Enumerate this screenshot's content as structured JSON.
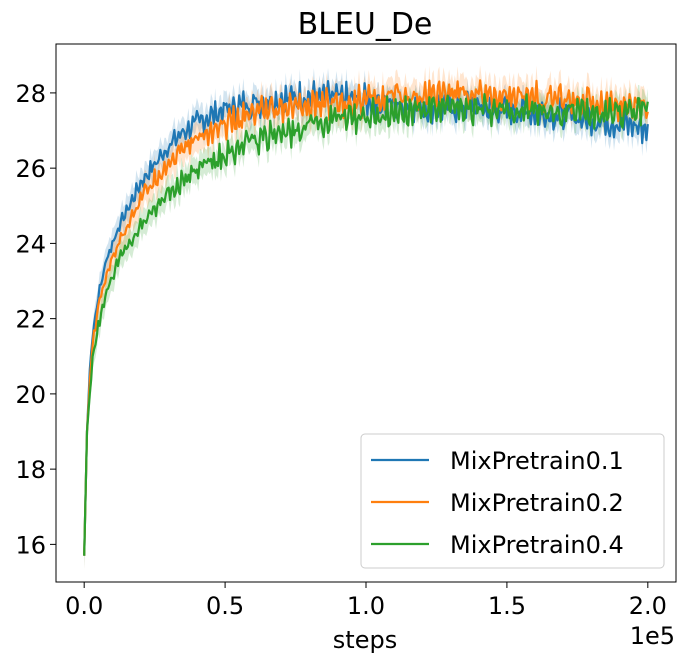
{
  "chart_data": {
    "type": "line",
    "title": "BLEU_De",
    "xlabel": "steps",
    "ylabel": "",
    "x_offset_text": "1e5",
    "xlim": [
      -0.1,
      2.1
    ],
    "ylim": [
      15.0,
      29.3
    ],
    "xticks": [
      0.0,
      0.5,
      1.0,
      1.5,
      2.0
    ],
    "xtick_labels": [
      "0.0",
      "0.5",
      "1.0",
      "1.5",
      "2.0"
    ],
    "yticks": [
      16,
      18,
      20,
      22,
      24,
      26,
      28
    ],
    "ytick_labels": [
      "16",
      "18",
      "20",
      "22",
      "24",
      "26",
      "28"
    ],
    "grid": false,
    "legend_position": "lower-right",
    "series": [
      {
        "name": "MixPretrain0.1",
        "color": "#1f77b4",
        "x": [
          0.0,
          0.01,
          0.02,
          0.03,
          0.05,
          0.08,
          0.12,
          0.16,
          0.2,
          0.25,
          0.3,
          0.35,
          0.4,
          0.45,
          0.5,
          0.6,
          0.7,
          0.8,
          0.9,
          1.0,
          1.1,
          1.2,
          1.3,
          1.4,
          1.5,
          1.6,
          1.7,
          1.8,
          1.9,
          2.0
        ],
        "y": [
          15.7,
          19.0,
          20.6,
          21.6,
          22.6,
          23.6,
          24.4,
          25.0,
          25.6,
          26.1,
          26.6,
          26.95,
          27.2,
          27.4,
          27.55,
          27.75,
          27.85,
          27.9,
          27.85,
          27.8,
          27.7,
          27.65,
          27.6,
          27.6,
          27.55,
          27.5,
          27.4,
          27.3,
          27.2,
          27.05
        ],
        "band": 0.35
      },
      {
        "name": "MixPretrain0.2",
        "color": "#ff7f0e",
        "x": [
          0.0,
          0.01,
          0.02,
          0.03,
          0.05,
          0.08,
          0.12,
          0.16,
          0.2,
          0.25,
          0.3,
          0.35,
          0.4,
          0.45,
          0.5,
          0.6,
          0.7,
          0.8,
          0.9,
          1.0,
          1.1,
          1.2,
          1.3,
          1.4,
          1.5,
          1.6,
          1.7,
          1.8,
          1.9,
          2.0
        ],
        "y": [
          15.7,
          19.0,
          20.3,
          21.3,
          22.3,
          23.2,
          24.0,
          24.6,
          25.2,
          25.7,
          26.15,
          26.5,
          26.8,
          27.0,
          27.15,
          27.4,
          27.55,
          27.65,
          27.75,
          27.8,
          27.9,
          27.95,
          28.0,
          27.95,
          27.9,
          27.85,
          27.8,
          27.75,
          27.7,
          27.6
        ],
        "band": 0.4
      },
      {
        "name": "MixPretrain0.4",
        "color": "#2ca02c",
        "x": [
          0.0,
          0.01,
          0.02,
          0.03,
          0.05,
          0.08,
          0.12,
          0.16,
          0.2,
          0.25,
          0.3,
          0.35,
          0.4,
          0.45,
          0.5,
          0.6,
          0.7,
          0.8,
          0.9,
          1.0,
          1.1,
          1.2,
          1.3,
          1.4,
          1.5,
          1.6,
          1.7,
          1.8,
          1.9,
          2.0
        ],
        "y": [
          15.7,
          19.0,
          20.0,
          20.9,
          21.8,
          22.7,
          23.5,
          24.0,
          24.5,
          24.95,
          25.35,
          25.65,
          25.9,
          26.15,
          26.35,
          26.7,
          26.95,
          27.15,
          27.3,
          27.4,
          27.5,
          27.55,
          27.55,
          27.55,
          27.55,
          27.5,
          27.5,
          27.5,
          27.5,
          27.6
        ],
        "band": 0.35
      }
    ]
  }
}
